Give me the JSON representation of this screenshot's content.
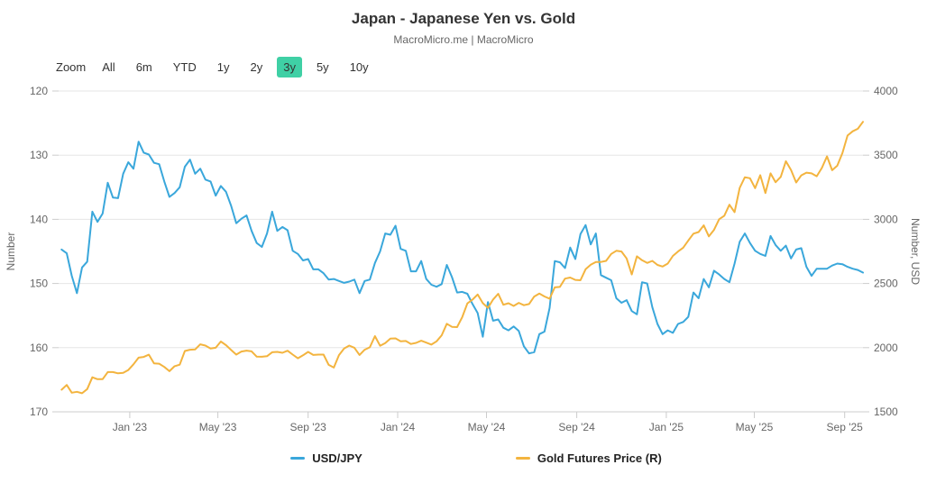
{
  "header": {
    "title": "Japan - Japanese Yen vs. Gold",
    "subtitle": "MacroMicro.me | MacroMicro"
  },
  "toolbar": {
    "zoom_label": "Zoom",
    "ranges": [
      "All",
      "6m",
      "YTD",
      "1y",
      "2y",
      "3y",
      "5y",
      "10y"
    ],
    "selected": "3y",
    "selected_color": "#3fd0a5"
  },
  "chart_data": {
    "type": "line",
    "title": "Japan - Japanese Yen vs. Gold",
    "subtitle": "MacroMicro.me | MacroMicro",
    "grid": true,
    "legend_position": "bottom",
    "x": [
      "2022-09-30",
      "2022-10-07",
      "2022-10-14",
      "2022-10-21",
      "2022-10-28",
      "2022-11-04",
      "2022-11-11",
      "2022-11-18",
      "2022-11-25",
      "2022-12-02",
      "2022-12-09",
      "2022-12-16",
      "2022-12-23",
      "2022-12-30",
      "2023-01-06",
      "2023-01-13",
      "2023-01-20",
      "2023-01-27",
      "2023-02-03",
      "2023-02-10",
      "2023-02-17",
      "2023-02-24",
      "2023-03-03",
      "2023-03-10",
      "2023-03-17",
      "2023-03-24",
      "2023-03-31",
      "2023-04-07",
      "2023-04-14",
      "2023-04-21",
      "2023-04-28",
      "2023-05-05",
      "2023-05-12",
      "2023-05-19",
      "2023-05-26",
      "2023-06-02",
      "2023-06-09",
      "2023-06-16",
      "2023-06-23",
      "2023-06-30",
      "2023-07-07",
      "2023-07-14",
      "2023-07-21",
      "2023-07-28",
      "2023-08-04",
      "2023-08-11",
      "2023-08-18",
      "2023-08-25",
      "2023-09-01",
      "2023-09-08",
      "2023-09-15",
      "2023-09-22",
      "2023-09-29",
      "2023-10-06",
      "2023-10-13",
      "2023-10-20",
      "2023-10-27",
      "2023-11-03",
      "2023-11-10",
      "2023-11-17",
      "2023-11-24",
      "2023-12-01",
      "2023-12-08",
      "2023-12-15",
      "2023-12-22",
      "2023-12-29",
      "2024-01-05",
      "2024-01-12",
      "2024-01-19",
      "2024-01-26",
      "2024-02-02",
      "2024-02-09",
      "2024-02-16",
      "2024-02-23",
      "2024-03-01",
      "2024-03-08",
      "2024-03-15",
      "2024-03-22",
      "2024-03-29",
      "2024-04-05",
      "2024-04-12",
      "2024-04-19",
      "2024-04-26",
      "2024-05-03",
      "2024-05-10",
      "2024-05-17",
      "2024-05-24",
      "2024-05-31",
      "2024-06-07",
      "2024-06-14",
      "2024-06-21",
      "2024-06-28",
      "2024-07-05",
      "2024-07-12",
      "2024-07-19",
      "2024-07-26",
      "2024-08-02",
      "2024-08-09",
      "2024-08-16",
      "2024-08-23",
      "2024-08-30",
      "2024-09-06",
      "2024-09-13",
      "2024-09-20",
      "2024-09-27",
      "2024-10-04",
      "2024-10-11",
      "2024-10-18",
      "2024-10-25",
      "2024-11-01",
      "2024-11-08",
      "2024-11-15",
      "2024-11-22",
      "2024-11-29",
      "2024-12-06",
      "2024-12-13",
      "2024-12-20",
      "2024-12-27",
      "2025-01-03",
      "2025-01-10",
      "2025-01-17",
      "2025-01-24",
      "2025-01-31",
      "2025-02-07",
      "2025-02-14",
      "2025-02-21",
      "2025-02-28",
      "2025-03-07",
      "2025-03-14",
      "2025-03-21",
      "2025-03-28",
      "2025-04-04",
      "2025-04-11",
      "2025-04-18",
      "2025-04-25",
      "2025-05-02",
      "2025-05-09",
      "2025-05-16",
      "2025-05-23",
      "2025-05-30",
      "2025-06-06",
      "2025-06-13",
      "2025-06-20",
      "2025-06-27",
      "2025-07-04",
      "2025-07-11",
      "2025-07-18",
      "2025-07-25",
      "2025-08-01",
      "2025-08-08",
      "2025-08-15",
      "2025-08-22",
      "2025-08-29",
      "2025-09-05",
      "2025-09-12",
      "2025-09-19",
      "2025-09-26"
    ],
    "series": [
      {
        "id": "usdjpy",
        "name": "USD/JPY",
        "color": "#3aa7db",
        "axis": "left",
        "values": [
          144.7,
          145.3,
          148.8,
          151.5,
          147.5,
          146.6,
          138.8,
          140.4,
          139.1,
          134.3,
          136.6,
          136.7,
          132.9,
          131.1,
          132.1,
          127.9,
          129.6,
          129.9,
          131.2,
          131.4,
          134.1,
          136.5,
          135.9,
          135.0,
          131.8,
          130.7,
          132.9,
          132.1,
          133.8,
          134.1,
          136.3,
          134.8,
          135.7,
          137.9,
          140.6,
          139.9,
          139.4,
          141.8,
          143.7,
          144.3,
          142.2,
          138.8,
          141.8,
          141.2,
          141.7,
          144.9,
          145.4,
          146.4,
          146.2,
          147.8,
          147.8,
          148.4,
          149.4,
          149.3,
          149.6,
          149.9,
          149.7,
          149.4,
          151.5,
          149.6,
          149.4,
          146.8,
          145.0,
          142.2,
          142.4,
          141.0,
          144.6,
          144.9,
          148.1,
          148.1,
          146.5,
          149.3,
          150.2,
          150.5,
          150.1,
          147.1,
          149.0,
          151.4,
          151.3,
          151.6,
          153.2,
          154.6,
          158.3,
          152.9,
          155.8,
          155.6,
          156.9,
          157.3,
          156.7,
          157.4,
          159.8,
          160.9,
          160.7,
          157.9,
          157.5,
          153.8,
          146.5,
          146.7,
          147.6,
          144.4,
          146.2,
          142.3,
          140.9,
          143.9,
          142.2,
          148.7,
          149.1,
          149.5,
          152.3,
          153.0,
          152.6,
          154.3,
          154.8,
          149.8,
          150.0,
          153.7,
          156.3,
          157.9,
          157.3,
          157.7,
          156.3,
          156.0,
          155.2,
          151.4,
          152.3,
          149.3,
          150.6,
          148.0,
          148.6,
          149.3,
          149.8,
          146.9,
          143.5,
          142.2,
          143.7,
          144.9,
          145.4,
          145.7,
          142.6,
          144.0,
          144.9,
          144.1,
          146.1,
          144.7,
          144.5,
          147.4,
          148.8,
          147.7,
          147.7,
          147.7,
          147.2,
          146.9,
          147.0,
          147.4,
          147.7,
          147.9,
          148.3
        ]
      },
      {
        "id": "gold-futures",
        "name": "Gold Futures Price (R)",
        "color": "#f3b43f",
        "axis": "right",
        "values": [
          1672,
          1709,
          1649,
          1656,
          1645,
          1677,
          1769,
          1754,
          1754,
          1810,
          1810,
          1800,
          1804,
          1826,
          1870,
          1922,
          1928,
          1945,
          1877,
          1875,
          1850,
          1817,
          1855,
          1867,
          1974,
          1984,
          1986,
          2026,
          2016,
          1994,
          1999,
          2048,
          2020,
          1982,
          1946,
          1970,
          1977,
          1971,
          1930,
          1929,
          1933,
          1964,
          1967,
          1960,
          1976,
          1946,
          1917,
          1940,
          1967,
          1943,
          1946,
          1946,
          1866,
          1845,
          1942,
          1994,
          2016,
          1999,
          1943,
          1984,
          2003,
          2090,
          2015,
          2036,
          2070,
          2072,
          2050,
          2052,
          2029,
          2037,
          2054,
          2039,
          2024,
          2049,
          2096,
          2186,
          2162,
          2160,
          2238,
          2345,
          2374,
          2414,
          2347,
          2310,
          2375,
          2420,
          2334,
          2346,
          2325,
          2349,
          2331,
          2340,
          2398,
          2421,
          2399,
          2381,
          2470,
          2473,
          2538,
          2546,
          2528,
          2525,
          2611,
          2646,
          2668,
          2668,
          2676,
          2730,
          2755,
          2749,
          2695,
          2570,
          2712,
          2681,
          2660,
          2676,
          2645,
          2632,
          2655,
          2715,
          2749,
          2779,
          2835,
          2888,
          2901,
          2953,
          2867,
          2918,
          3001,
          3028,
          3114,
          3056,
          3245,
          3328,
          3320,
          3243,
          3344,
          3205,
          3358,
          3289,
          3331,
          3453,
          3385,
          3287,
          3343,
          3364,
          3358,
          3336,
          3400,
          3491,
          3383,
          3418,
          3516,
          3653,
          3686,
          3706,
          3760
        ]
      }
    ],
    "left_axis": {
      "label": "Number",
      "min": 120,
      "max": 170,
      "reversed": true,
      "ticks": [
        120,
        130,
        140,
        150,
        160,
        170
      ]
    },
    "right_axis": {
      "label": "Number, USD",
      "min": 1500,
      "max": 4000,
      "ticks": [
        4000,
        3500,
        3000,
        2500,
        2000,
        1500
      ]
    },
    "x_axis": {
      "ticks": [
        {
          "date": "2023-01-01",
          "label": "Jan '23"
        },
        {
          "date": "2023-05-01",
          "label": "May '23"
        },
        {
          "date": "2023-09-01",
          "label": "Sep '23"
        },
        {
          "date": "2024-01-01",
          "label": "Jan '24"
        },
        {
          "date": "2024-05-01",
          "label": "May '24"
        },
        {
          "date": "2024-09-01",
          "label": "Sep '24"
        },
        {
          "date": "2025-01-01",
          "label": "Jan '25"
        },
        {
          "date": "2025-05-01",
          "label": "May '25"
        },
        {
          "date": "2025-09-01",
          "label": "Sep '25"
        }
      ]
    }
  }
}
